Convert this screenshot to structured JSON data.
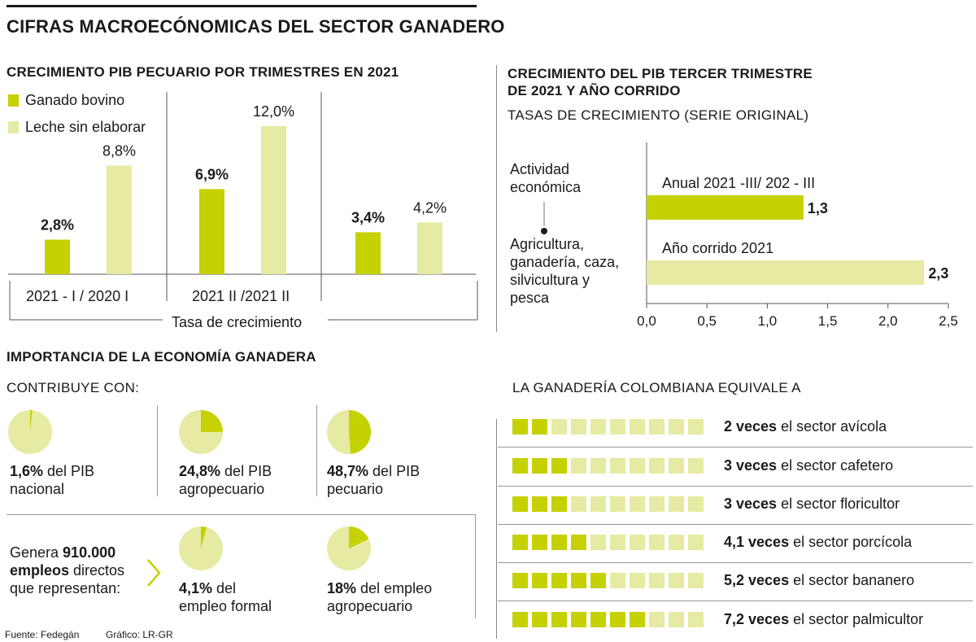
{
  "main_title": "CIFRAS MACROECÓNOMICAS DEL SECTOR GANADERO",
  "colors": {
    "dark": "#c5d100",
    "light": "#e6eaa2",
    "line": "#555555"
  },
  "chart_data": [
    {
      "type": "bar",
      "title": "CRECIMIENTO PIB PECUARIO POR TRIMESTRES EN 2021",
      "legend": [
        "Ganado bovino",
        "Leche sin elaborar"
      ],
      "categories": [
        "2021 - I / 2020 I",
        "2021 II /2021 II",
        ""
      ],
      "series": [
        {
          "name": "Ganado bovino",
          "values": [
            2.8,
            6.9,
            3.4
          ],
          "labels": [
            "2,8%",
            "6,9%",
            "3,4%"
          ]
        },
        {
          "name": "Leche sin elaborar",
          "values": [
            8.8,
            12.0,
            4.2
          ],
          "labels": [
            "8,8%",
            "12,0%",
            "4,2%"
          ]
        }
      ],
      "xlabel": "Tasa de crecimiento",
      "ylim": [
        0,
        12
      ]
    },
    {
      "type": "bar",
      "orientation": "horizontal",
      "title": "CRECIMIENTO DEL PIB TERCER TRIMESTRE DE 2021 Y AÑO CORRIDO",
      "subtitle": "TASAS DE CRECIMIENTO (SERIE ORIGINAL)",
      "category_header": "Actividad económica",
      "category": "Agricultura, ganadería, caza, silvicultura y pesca",
      "series": [
        {
          "name": "Anual 2021 -III/ 202 - III",
          "value": 1.3,
          "label": "1,3"
        },
        {
          "name": "Año corrido 2021",
          "value": 2.3,
          "label": "2,3"
        }
      ],
      "xlim": [
        0,
        2.5
      ],
      "ticks": [
        "0,0",
        "0,5",
        "1,0",
        "1,5",
        "2,0",
        "2,5"
      ]
    }
  ],
  "importance": {
    "title": "IMPORTANCIA DE LA ECONOMÍA GANADERA",
    "contribuye": "CONTRIBUYE CON:",
    "pies_top": [
      {
        "value": 1.6,
        "bold": "1,6%",
        "line1": " del PIB",
        "line2": "nacional"
      },
      {
        "value": 24.8,
        "bold": "24,8%",
        "line1": " del PIB",
        "line2": "agropecuario"
      },
      {
        "value": 48.7,
        "bold": "48,7%",
        "line1": " del PIB",
        "line2": "pecuario"
      }
    ],
    "empleos": {
      "pre": "Genera ",
      "bold1": "910.000",
      "bold2": "empleos",
      "post": " directos",
      "line3": "que representan:"
    },
    "pies_bottom": [
      {
        "value": 4.1,
        "bold": "4,1%",
        "line1": " del",
        "line2": "empleo formal"
      },
      {
        "value": 18,
        "bold": "18%",
        "line1": " del empleo",
        "line2": "agropecuario"
      }
    ]
  },
  "equivale": {
    "title": "LA GANADERÍA COLOMBIANA EQUIVALE A",
    "total_squares": 10,
    "rows": [
      {
        "value": 2,
        "bold": "2 veces",
        "text": " el sector avícola"
      },
      {
        "value": 3,
        "bold": "3 veces",
        "text": " el sector cafetero"
      },
      {
        "value": 3,
        "bold": "3 veces",
        "text": " el sector floricultor"
      },
      {
        "value": 4.1,
        "bold": "4,1 veces",
        "text": " el sector porcícola"
      },
      {
        "value": 5.2,
        "bold": "5,2 veces",
        "text": " el sector bananero"
      },
      {
        "value": 7.2,
        "bold": "7,2 veces",
        "text": " el sector palmicultor"
      }
    ]
  },
  "footer": {
    "source": "Fuente: Fedegán",
    "graphic": "Gráfico: LR-GR"
  }
}
